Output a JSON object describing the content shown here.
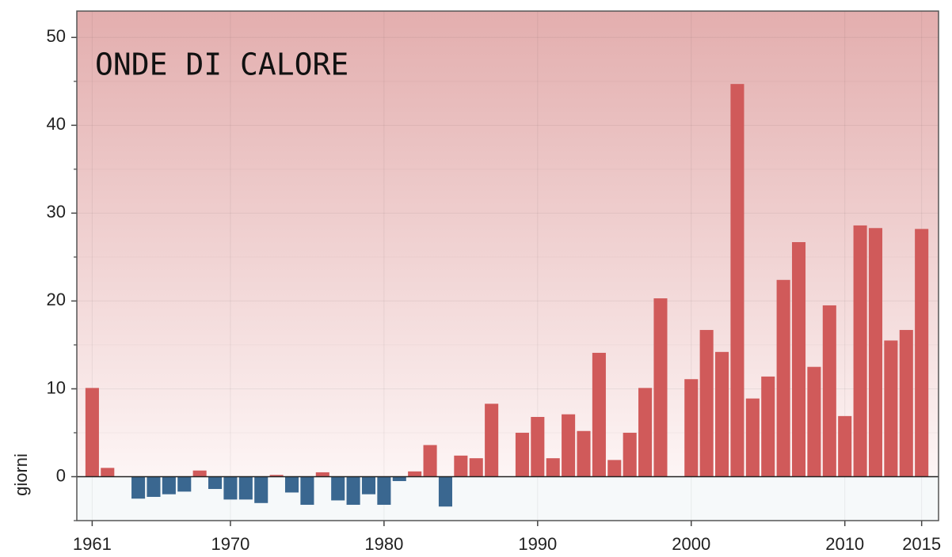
{
  "chart_data": {
    "type": "bar",
    "title": "ONDE DI CALORE",
    "ylabel": "giorni",
    "x": [
      1961,
      1962,
      1963,
      1964,
      1965,
      1966,
      1967,
      1968,
      1969,
      1970,
      1971,
      1972,
      1973,
      1974,
      1975,
      1976,
      1977,
      1978,
      1979,
      1980,
      1981,
      1982,
      1983,
      1984,
      1985,
      1986,
      1987,
      1988,
      1989,
      1990,
      1991,
      1992,
      1993,
      1994,
      1995,
      1996,
      1997,
      1998,
      1999,
      2000,
      2001,
      2002,
      2003,
      2004,
      2005,
      2006,
      2007,
      2008,
      2009,
      2010,
      2011,
      2012,
      2013,
      2014,
      2015
    ],
    "values": [
      10.1,
      1.0,
      0,
      -2.5,
      -2.3,
      -2.0,
      -1.7,
      0.7,
      -1.4,
      -2.6,
      -2.6,
      -3.0,
      0.2,
      -1.8,
      -3.2,
      0.5,
      -2.7,
      -3.2,
      -2.0,
      -3.2,
      -0.5,
      0.6,
      3.6,
      -3.4,
      2.4,
      2.1,
      8.3,
      0,
      5.0,
      6.8,
      2.1,
      7.1,
      5.2,
      14.1,
      1.9,
      5.0,
      10.1,
      20.3,
      0,
      11.1,
      16.7,
      14.2,
      44.7,
      8.9,
      11.4,
      22.4,
      26.7,
      12.5,
      19.5,
      6.9,
      28.6,
      28.3,
      15.5,
      16.7,
      28.2
    ],
    "positive_color": "#d05a5a",
    "negative_color": "#3a6790",
    "xlim": [
      1960,
      2016.1
    ],
    "xticks": [
      1961,
      1970,
      1980,
      1990,
      2000,
      2010,
      2015
    ],
    "ylim": [
      -5,
      53
    ],
    "yticks": [
      0,
      10,
      20,
      30,
      40,
      50
    ],
    "yminor_ticks": [
      -5,
      5,
      15,
      25,
      35,
      45
    ],
    "grid": true
  }
}
